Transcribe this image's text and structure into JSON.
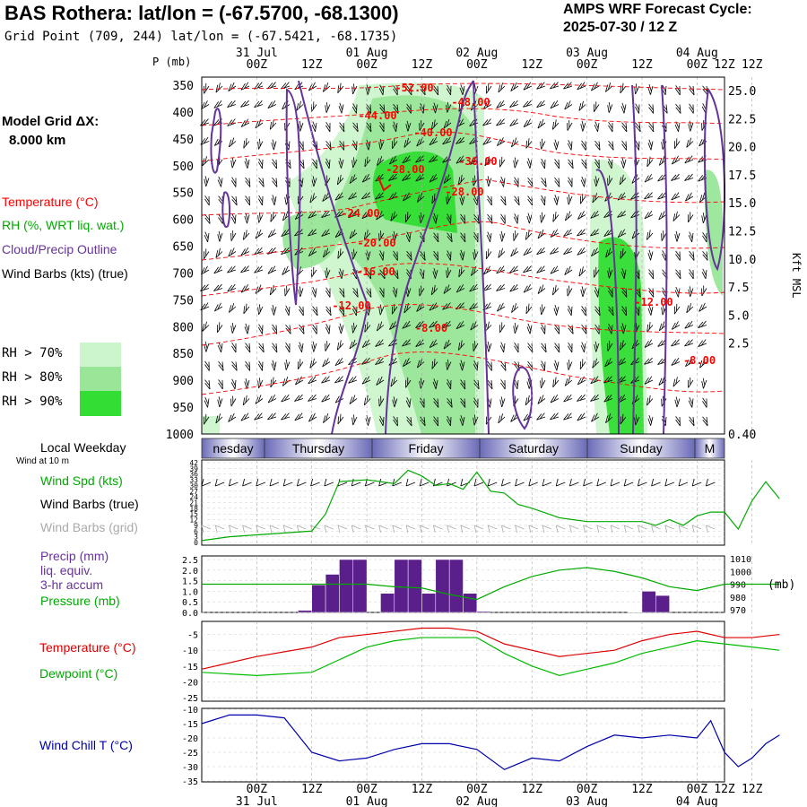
{
  "header": {
    "title": "BAS Rothera:  lat/lon = (-67.5700, -68.1300)",
    "subtitle": "Grid Point (709, 244) lat/lon = (-67.5421, -68.1735)",
    "cycle_label": "AMPS WRF Forecast Cycle:",
    "cycle_value": "2025-07-30 / 12  Z"
  },
  "legend": {
    "grid_label": "Model Grid ΔX:",
    "grid_value": "8.000 km",
    "temperature": "Temperature (°C)",
    "rh": "RH (%, WRT liq. wat.)",
    "cloud": "Cloud/Precip Outline",
    "wind": "Wind Barbs (kts) (true)",
    "rh70": "RH > 70%",
    "rh80": "RH > 80%",
    "rh90": "RH > 90%"
  },
  "colors": {
    "temperature": "#ff0000",
    "rh": "#00aa00",
    "cloud": "#663399",
    "rh70": "#ccf5cc",
    "rh80": "#99e699",
    "rh90": "#33dd33",
    "precip": "#5a1f8a",
    "windchill": "#0000aa",
    "wind_grid": "#aaaaaa",
    "weekday_band": "#8888c8"
  },
  "time_axis": {
    "ticks": [
      "00Z",
      "12Z",
      "00Z",
      "12Z",
      "00Z",
      "12Z",
      "00Z",
      "12Z",
      "00Z",
      "12Z"
    ],
    "top_dates": [
      "31 Jul",
      "01 Aug",
      "02 Aug",
      "03 Aug",
      "04 Aug"
    ],
    "bottom_dates": [
      "31 Jul",
      "01 Aug",
      "02 Aug",
      "03 Aug",
      "04 Aug"
    ]
  },
  "weekdays": {
    "title": "Local Weekday",
    "days": [
      "nesday",
      "Thursday",
      "Friday",
      "Saturday",
      "Sunday",
      "M"
    ]
  },
  "wind_note": "Wind at 10 m",
  "panel_labels": {
    "wind_spd": "Wind Spd (kts)",
    "wind_true": "Wind Barbs (true)",
    "wind_grid": "Wind Barbs (grid)",
    "precip1": "Precip (mm)",
    "precip2": "liq. equiv.",
    "precip3": "3-hr accum",
    "pressure": "Pressure (mb)",
    "pressure_unit": "(mb)",
    "temp": "Temperature (°C)",
    "dew": "Dewpoint (°C)",
    "windchill": "Wind Chill T (°C)"
  },
  "chart_data": [
    {
      "type": "heatmap",
      "title": "Time-height cross section",
      "ylabel": "P (mb)",
      "y2label": "Kft MSL",
      "p_ticks": [
        350,
        400,
        450,
        500,
        550,
        600,
        650,
        700,
        750,
        800,
        850,
        900,
        950,
        1000
      ],
      "kft_ticks": [
        "25.0",
        "22.5",
        "20.0",
        "17.5",
        "15.0",
        "12.5",
        "10.0",
        "7.5",
        "5.0",
        "2.5",
        "0.40"
      ],
      "temperature_contours": [
        "-52.00",
        "-48.00",
        "-44.00",
        "-40.00",
        "-36.00",
        "-28.00",
        "-28.00",
        "-24.00",
        "-20.00",
        "-16.00",
        "-12.00",
        "-8.00",
        "-12.00",
        "-8.00"
      ]
    },
    {
      "type": "line",
      "title": "Wind Spd (kts)",
      "yticks": [
        0,
        3,
        6,
        9,
        12,
        15,
        18,
        21,
        24,
        27,
        30,
        33,
        36,
        39,
        42
      ],
      "x_hours": [
        -12,
        -6,
        0,
        6,
        12,
        15,
        18,
        24,
        30,
        33,
        36,
        39,
        42,
        45,
        48,
        51,
        54,
        57,
        60,
        66,
        72,
        78,
        84,
        87,
        90,
        93,
        96,
        99,
        102,
        105,
        108,
        111,
        114
      ],
      "values": [
        1,
        3,
        4,
        5,
        6,
        15,
        32,
        33,
        31,
        38,
        35,
        30,
        31,
        28,
        37,
        27,
        26,
        20,
        18,
        13,
        11,
        11,
        11,
        9,
        12,
        9,
        14,
        16,
        16,
        7,
        22,
        32,
        23
      ]
    },
    {
      "type": "bar",
      "title": "Precip (mm)",
      "yticks": [
        0.0,
        0.5,
        1.0,
        1.5,
        2.0,
        2.5
      ],
      "x_hours": [
        12,
        15,
        18,
        21,
        24,
        27,
        30,
        33,
        36,
        39,
        42,
        45,
        48,
        51,
        84,
        87,
        90,
        93
      ],
      "values": [
        0.1,
        1.3,
        1.8,
        2.5,
        2.5,
        0.0,
        0.9,
        2.5,
        2.5,
        0.9,
        2.5,
        2.5,
        0.9,
        0.05,
        0.02,
        1.0,
        0.8,
        0.0
      ],
      "pressure_ticks": [
        970,
        980,
        990,
        1000,
        1010
      ],
      "pressure_hours": [
        -12,
        0,
        12,
        24,
        30,
        36,
        42,
        48,
        54,
        60,
        66,
        72,
        78,
        84,
        90,
        96,
        102,
        108,
        114
      ],
      "pressure_values": [
        990,
        990,
        990,
        990,
        988,
        987,
        982,
        978,
        988,
        996,
        1001,
        1003,
        1000,
        995,
        988,
        985,
        990,
        990,
        990
      ]
    },
    {
      "type": "line",
      "title": "Temperature / Dewpoint (°C)",
      "yticks": [
        -5,
        -10,
        -15,
        -20,
        -25
      ],
      "x_hours": [
        -12,
        0,
        12,
        18,
        24,
        30,
        36,
        42,
        48,
        54,
        60,
        66,
        72,
        78,
        84,
        90,
        96,
        102,
        108,
        114
      ],
      "series": [
        {
          "name": "Temperature (°C)",
          "values": [
            -16,
            -12,
            -9,
            -6,
            -5,
            -4,
            -3,
            -3,
            -4,
            -8,
            -10,
            -12,
            -11,
            -10,
            -7,
            -5,
            -4,
            -6,
            -6,
            -5
          ]
        },
        {
          "name": "Dewpoint (°C)",
          "values": [
            -17,
            -18,
            -17,
            -13,
            -9,
            -7,
            -6,
            -6,
            -6,
            -11,
            -15,
            -18,
            -16,
            -14,
            -11,
            -9,
            -7,
            -8,
            -9,
            -10
          ]
        }
      ]
    },
    {
      "type": "line",
      "title": "Wind Chill T (°C)",
      "yticks": [
        -10,
        -15,
        -20,
        -25,
        -30,
        -35
      ],
      "x_hours": [
        -12,
        -6,
        0,
        6,
        12,
        18,
        24,
        30,
        36,
        42,
        48,
        54,
        60,
        66,
        72,
        78,
        84,
        90,
        96,
        99,
        102,
        105,
        108,
        111,
        114
      ],
      "values": [
        -15,
        -12,
        -12,
        -13,
        -25,
        -28,
        -27,
        -24,
        -22,
        -22,
        -24,
        -31,
        -27,
        -28,
        -23,
        -19,
        -20,
        -19,
        -20,
        -14,
        -25,
        -30,
        -27,
        -22,
        -19
      ]
    }
  ]
}
